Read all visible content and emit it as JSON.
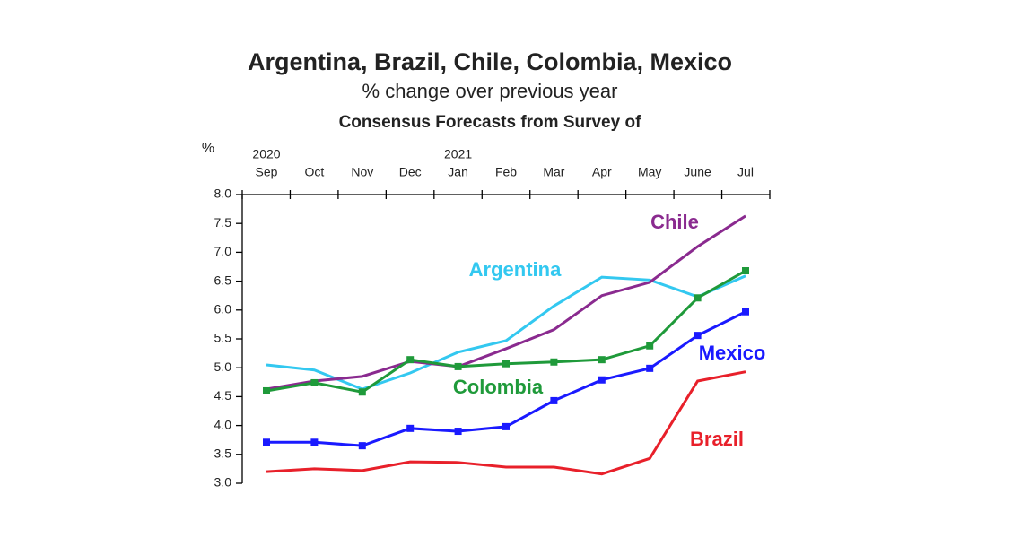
{
  "chart_data": {
    "type": "line",
    "title": "Argentina, Brazil, Chile, Colombia, Mexico",
    "subtitle": "% change over previous year",
    "note": "Consensus Forecasts from Survey of",
    "y_label": "%",
    "categories": [
      "Sep",
      "Oct",
      "Nov",
      "Dec",
      "Jan",
      "Feb",
      "Mar",
      "Apr",
      "May",
      "June",
      "Jul"
    ],
    "category_years": [
      "2020",
      null,
      null,
      null,
      "2021",
      null,
      null,
      null,
      null,
      null,
      null
    ],
    "ylim": [
      3,
      8
    ],
    "yticks": [
      {
        "value": 3,
        "label": "3.0"
      },
      3.5,
      {
        "value": 4,
        "label": "4.0"
      },
      4.5,
      {
        "value": 5,
        "label": "5.0"
      },
      5.5,
      {
        "value": 6,
        "label": "6.0"
      },
      6.5,
      {
        "value": 7,
        "label": "7.0"
      },
      7.5,
      {
        "value": 8,
        "label": "8.0"
      }
    ],
    "series": [
      {
        "name": "Argentina",
        "color": "#33c8f0",
        "values": [
          5.05,
          4.96,
          4.63,
          4.91,
          5.27,
          5.47,
          6.07,
          6.57,
          6.52,
          6.23,
          6.59
        ]
      },
      {
        "name": "Chile",
        "color": "#8a2a8f",
        "values": [
          4.63,
          4.77,
          4.85,
          5.11,
          5.02,
          5.33,
          5.66,
          6.25,
          6.48,
          7.1,
          7.63
        ]
      },
      {
        "name": "Colombia",
        "color": "#1f9a3a",
        "marker": "square",
        "values": [
          4.6,
          4.74,
          4.58,
          5.14,
          5.02,
          5.07,
          5.1,
          5.14,
          5.38,
          6.21,
          6.68
        ]
      },
      {
        "name": "Mexico",
        "color": "#1a1aff",
        "marker": "square",
        "values": [
          3.71,
          3.71,
          3.65,
          3.95,
          3.9,
          3.98,
          4.43,
          4.79,
          4.99,
          5.56,
          5.97
        ]
      },
      {
        "name": "Brazil",
        "color": "#e8202a",
        "values": [
          3.2,
          3.25,
          3.22,
          3.37,
          3.36,
          3.28,
          3.28,
          3.16,
          3.43,
          4.77,
          4.93
        ]
      }
    ]
  }
}
